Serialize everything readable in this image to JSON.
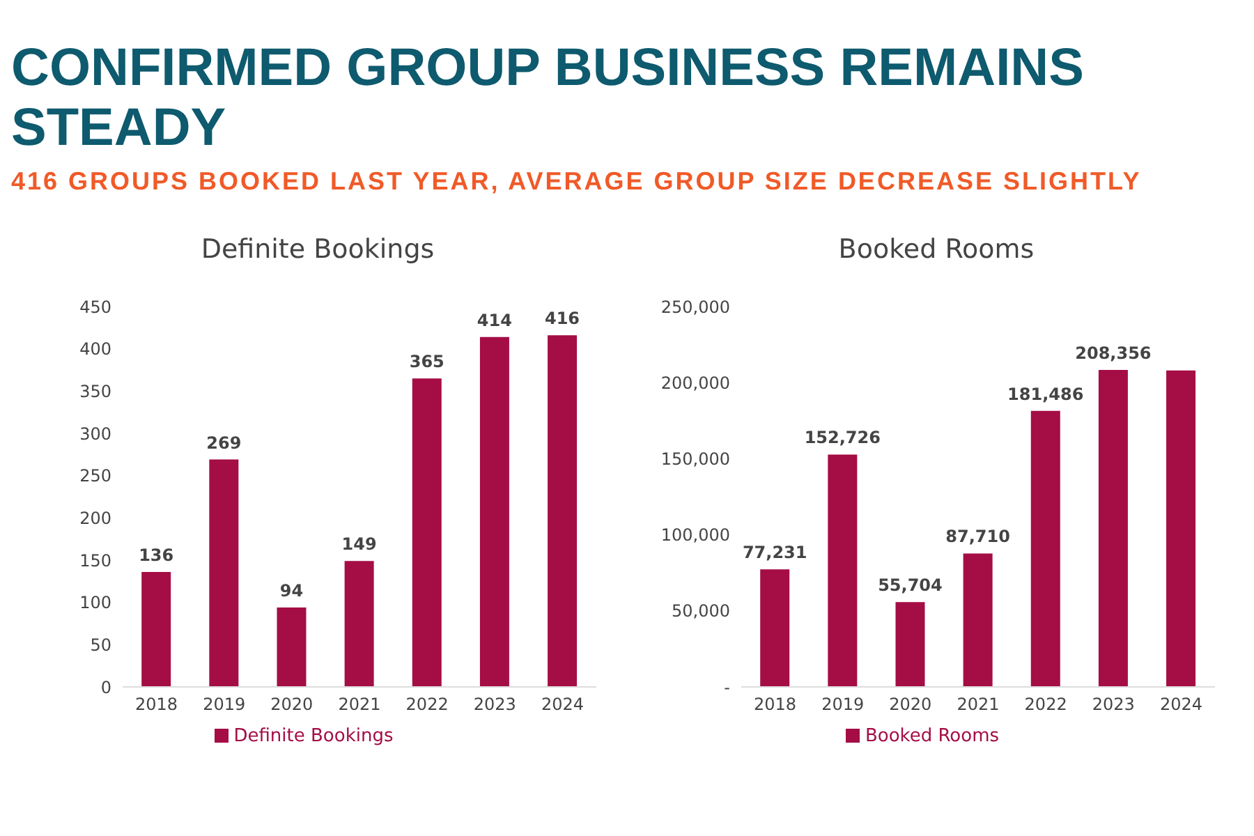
{
  "chart_data": [
    {
      "type": "bar",
      "title": "Definite Bookings",
      "annotations": [
        "CONFIRMED GROUP BUSINESS REMAINS STEADY",
        "416 GROUPS BOOKED LAST YEAR, AVERAGE GROUP SIZE DECREASE SLIGHTLY"
      ],
      "categories": [
        "2018",
        "2019",
        "2020",
        "2021",
        "2022",
        "2023",
        "2024"
      ],
      "series": [
        {
          "name": "Definite Bookings",
          "color": "#a50d45",
          "values": [
            136,
            269,
            94,
            149,
            365,
            414,
            416
          ]
        }
      ],
      "ylim": [
        0,
        450
      ],
      "yticks": [
        0,
        50,
        100,
        150,
        200,
        250,
        300,
        350,
        400,
        450
      ],
      "data_labels": true,
      "legend": "bottom"
    },
    {
      "type": "bar",
      "title": "Booked Rooms",
      "categories": [
        "2018",
        "2019",
        "2020",
        "2021",
        "2022",
        "2023",
        "2024"
      ],
      "series": [
        {
          "name": "Booked Rooms",
          "color": "#a50d45",
          "values": [
            77231,
            152726,
            55704,
            87710,
            181486,
            208356,
            208000
          ]
        }
      ],
      "value_labels": [
        "77,231",
        "152,726",
        "55,704",
        "87,710",
        "181,486",
        "208,356",
        null
      ],
      "ylim": [
        0,
        250000
      ],
      "yticks": [
        {
          "value": 0,
          "label": "-"
        },
        {
          "value": 50000,
          "label": "50,000"
        },
        {
          "value": 100000,
          "label": "100,000"
        },
        {
          "value": 150000,
          "label": "150,000"
        },
        {
          "value": 200000,
          "label": "200,000"
        },
        {
          "value": 250000,
          "label": "250,000"
        }
      ],
      "legend": "bottom"
    }
  ]
}
